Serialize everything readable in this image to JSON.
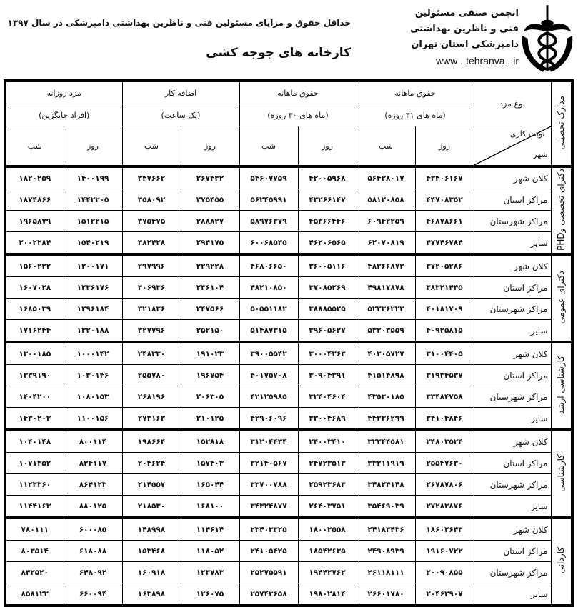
{
  "header": {
    "title": "حداقل حقوق و مزایای مسئولین فنی و ناظرین بهداشتی دامپزشکی در سال ۱۳۹۷",
    "subtitle": "کارخانه های جوجه کشی",
    "org_lines": [
      "انجمن صنفی مسئولین",
      "فنی و ناظرین بهداشتی",
      "دامپزشکی استان تهران"
    ],
    "website": "www . tehranva . ir",
    "logo_icon": "caduceus-hands-tower-icon"
  },
  "table": {
    "degree_header": "مدارک تحصیلی",
    "wage_type_header": "نوع مزد",
    "shift_header": "نوبت کاری",
    "city_header": "شهر",
    "column_groups": [
      {
        "title": "حقوق ماهانه",
        "sub": "(ماه های ۳۱ روزه)"
      },
      {
        "title": "حقوق ماهانه",
        "sub": "(ماه های ۳۰ روزه)"
      },
      {
        "title": "اضافه کار",
        "sub": "(یک ساعت)"
      },
      {
        "title": "مزد روزانه",
        "sub": "(افراد جایگزین)"
      }
    ],
    "day_label": "روز",
    "night_label": "شب",
    "groups": [
      {
        "degree": "دکترای تخصصی وPHD",
        "rows": [
          {
            "city": "کلان شهر",
            "values": [
              "۴۳۴۰۶۱۶۷",
              "۵۶۴۲۸۰۱۷",
              "۴۲۰۰۵۹۶۸",
              "۵۴۶۰۷۷۵۹",
              "۲۶۷۴۳۲",
              "۳۴۷۶۶۲",
              "۱۴۰۰۱۹۹",
              "۱۸۲۰۲۵۹"
            ]
          },
          {
            "city": "مراکز استان",
            "values": [
              "۴۴۷۰۸۳۵۲",
              "۵۸۱۲۰۸۵۸",
              "۴۳۲۶۶۱۴۷",
              "۵۶۲۴۵۹۹۱",
              "۲۷۵۴۵۵",
              "۳۵۸۰۹۲",
              "۱۴۴۲۲۰۵",
              "۱۸۷۴۸۶۶"
            ]
          },
          {
            "city": "مراکز شهرستان",
            "values": [
              "۴۶۸۷۸۶۶۱",
              "۶۰۹۴۲۲۵۹",
              "۴۵۳۶۶۴۴۶",
              "۵۸۹۷۶۳۷۹",
              "۲۸۸۸۲۷",
              "۳۷۵۴۷۵",
              "۱۵۱۲۲۱۵",
              "۱۹۶۵۸۷۹"
            ]
          },
          {
            "city": "سایر",
            "values": [
              "۴۷۷۴۶۷۸۴",
              "۶۲۰۷۰۸۱۹",
              "۴۶۲۰۶۵۶۵",
              "۶۰۰۶۸۵۳۵",
              "۲۹۴۱۷۵",
              "۳۸۲۴۲۸",
              "۱۵۴۰۲۱۹",
              "۲۰۰۲۲۸۴"
            ]
          }
        ]
      },
      {
        "degree": "دکترای عمومی",
        "rows": [
          {
            "city": "کلان شهر",
            "values": [
              "۳۷۲۰۵۲۸۶",
              "۴۸۳۶۶۸۷۲",
              "۳۶۰۰۵۱۱۶",
              "۴۶۸۰۶۶۵۰",
              "۲۲۹۲۲۸",
              "۲۹۷۹۹۶",
              "۱۲۰۰۱۷۱",
              "۱۵۶۰۲۲۲"
            ]
          },
          {
            "city": "مراکز استان",
            "values": [
              "۳۸۳۲۱۴۴۵",
              "۴۹۸۱۷۸۷۸",
              "۳۷۰۸۵۲۶۹",
              "۴۸۲۱۰۸۵۰",
              "۲۳۶۱۰۴",
              "۳۰۶۹۳۶",
              "۱۲۳۶۱۷۶",
              "۱۶۰۷۰۲۸"
            ]
          },
          {
            "city": "مراکز شهرستان",
            "values": [
              "۴۰۱۸۱۷۰۹",
              "۵۲۲۳۶۲۲۲",
              "۳۸۸۸۵۵۲۵",
              "۵۰۵۵۱۱۸۲",
              "۲۴۷۵۶۶",
              "۳۲۱۸۳۶",
              "۱۲۹۶۱۸۴",
              "۱۶۸۵۰۳۹"
            ]
          },
          {
            "city": "سایر",
            "values": [
              "۴۰۹۲۵۸۱۵",
              "۵۳۲۰۳۵۵۹",
              "۳۹۶۰۵۶۲۷",
              "۵۱۴۸۷۳۱۵",
              "۲۵۲۱۵۰",
              "۳۲۷۷۹۶",
              "۱۳۲۰۱۸۸",
              "۱۷۱۶۲۴۴"
            ]
          }
        ]
      },
      {
        "degree": "کارشناسی ارشد",
        "rows": [
          {
            "city": "کلان شهر",
            "values": [
              "۳۱۰۰۴۴۰۵",
              "۴۰۳۰۵۷۲۷",
              "۳۰۰۰۴۲۶۳",
              "۳۹۰۰۵۵۴۲",
              "۱۹۱۰۲۳",
              "۲۴۸۳۳۰",
              "۱۰۰۰۱۴۲",
              "۱۳۰۰۱۸۵"
            ]
          },
          {
            "city": "مراکز استان",
            "values": [
              "۳۱۹۳۴۵۳۷",
              "۴۱۵۱۴۸۹۸",
              "۳۰۹۰۴۳۹۱",
              "۴۰۱۷۵۷۰۸",
              "۱۹۶۷۵۴",
              "۲۵۵۷۸۰",
              "۱۰۳۰۱۴۶",
              "۱۳۳۹۱۹۰"
            ]
          },
          {
            "city": "مراکز شهرستان",
            "values": [
              "۳۳۴۸۴۷۵۸",
              "۴۳۵۳۰۱۸۵",
              "۳۲۴۰۴۶۰۴",
              "۴۲۱۲۵۹۸۵",
              "۲۰۶۳۰۵",
              "۲۶۸۱۹۶",
              "۱۰۸۰۱۵۳",
              "۱۴۰۴۲۰۰"
            ]
          },
          {
            "city": "سایر",
            "values": [
              "۳۴۱۰۴۸۴۶",
              "۴۴۳۳۶۲۹۹",
              "۳۳۰۰۴۶۸۹",
              "۴۲۹۰۶۰۹۶",
              "۲۱۰۱۲۵",
              "۲۷۳۱۶۳",
              "۱۱۰۰۱۵۶",
              "۱۴۳۰۲۰۳"
            ]
          }
        ]
      },
      {
        "degree": "کارشناسی",
        "rows": [
          {
            "city": "کلان شهر",
            "values": [
              "۲۴۸۰۳۵۲۴",
              "۳۲۲۴۴۵۸۱",
              "۲۴۰۰۳۴۱۰",
              "۳۱۲۰۴۴۳۴",
              "۱۵۲۸۱۸",
              "۱۹۸۶۶۴",
              "۸۰۰۱۱۴",
              "۱۰۴۰۱۴۸"
            ]
          },
          {
            "city": "مراکز استان",
            "values": [
              "۲۵۵۴۷۶۳۰",
              "۳۳۲۱۱۹۱۹",
              "۲۴۷۲۳۵۱۳",
              "۳۲۱۴۰۵۶۷",
              "۱۵۷۴۰۳",
              "۲۰۴۶۲۴",
              "۸۲۴۱۱۷",
              "۱۰۷۱۳۵۲"
            ]
          },
          {
            "city": "مراکز شهرستان",
            "values": [
              "۲۶۷۸۷۸۰۶",
              "۳۴۸۲۴۱۴۸",
              "۲۵۹۲۳۶۸۳",
              "۳۳۷۰۰۷۸۸",
              "۱۶۵۰۴۴",
              "۲۱۴۵۵۷",
              "۸۶۴۱۲۳",
              "۱۱۲۳۳۶۰"
            ]
          },
          {
            "city": "سایر",
            "values": [
              "۲۷۲۸۳۸۷۶",
              "۳۵۴۶۹۰۳۹",
              "۲۶۴۰۳۷۵۱",
              "۳۴۳۲۴۸۷۷",
              "۱۶۸۱۰۰",
              "۲۱۸۵۳۰",
              "۸۸۰۱۲۵",
              "۱۱۴۴۱۶۳"
            ]
          }
        ]
      },
      {
        "degree": "کاردانی",
        "rows": [
          {
            "city": "کلان شهر",
            "values": [
              "۱۸۶۰۲۶۴۳",
              "۲۴۱۸۳۴۳۶",
              "۱۸۰۰۲۵۵۸",
              "۲۳۴۰۳۳۲۵",
              "۱۱۴۶۱۴",
              "۱۴۸۹۹۸",
              "۶۰۰۰۸۵",
              "۷۸۰۱۱۱"
            ]
          },
          {
            "city": "مراکز استان",
            "values": [
              "۱۹۱۶۰۷۲۲",
              "۲۴۹۰۸۹۳۹",
              "۱۸۵۴۲۶۳۵",
              "۲۴۱۰۵۴۲۵",
              "۱۱۸۰۵۲",
              "۱۵۳۴۶۸",
              "۶۱۸۰۸۸",
              "۸۰۳۵۱۴"
            ]
          },
          {
            "city": "مراکز شهرستان",
            "values": [
              "۲۰۰۹۰۸۵۵",
              "۲۶۱۱۸۱۱۱",
              "۱۹۴۴۲۷۶۲",
              "۲۵۲۷۵۵۹۱",
              "۱۲۳۷۸۳",
              "۱۶۰۹۱۸",
              "۶۴۸۰۹۲",
              "۸۴۲۵۲۰"
            ]
          },
          {
            "city": "سایر",
            "values": [
              "۲۰۴۶۲۹۰۷",
              "۲۶۶۰۱۷۸۰",
              "۱۹۸۰۲۸۱۴",
              "۲۵۷۴۳۶۵۸",
              "۱۲۶۰۷۵",
              "۱۶۳۸۹۸",
              "۶۶۰۰۹۴",
              "۸۵۸۱۲۲"
            ]
          }
        ]
      }
    ]
  }
}
